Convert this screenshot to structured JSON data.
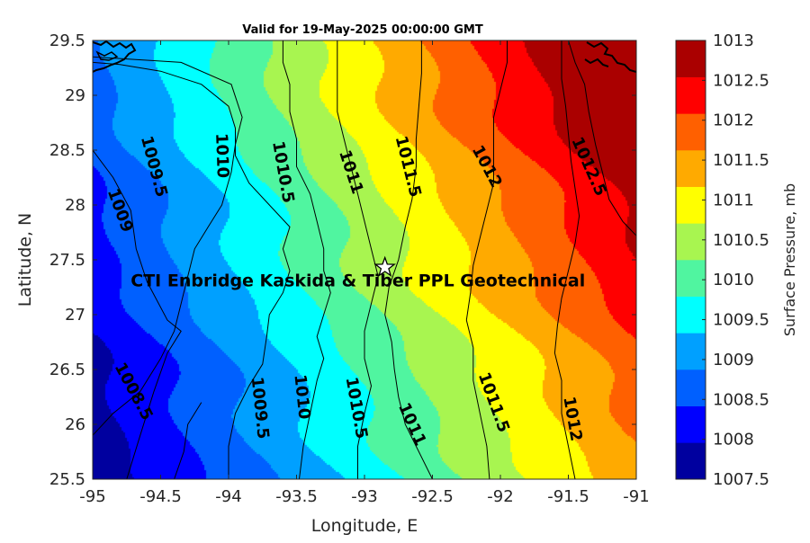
{
  "chart_data": {
    "type": "contour",
    "title": "Valid for 19-May-2025 00:00:00 GMT",
    "xlabel": "Longitude, E",
    "ylabel": "Latitude, N",
    "xlim": [
      -95,
      -91
    ],
    "ylim": [
      25.5,
      29.5
    ],
    "x_ticks": [
      -95,
      -94.5,
      -94,
      -93.5,
      -93,
      -92.5,
      -92,
      -91.5,
      -91
    ],
    "y_ticks": [
      25.5,
      26,
      26.5,
      27,
      27.5,
      28,
      28.5,
      29,
      29.5
    ],
    "colorbar": {
      "label": "Surface Pressure, mb",
      "ticks": [
        1007.5,
        1008,
        1008.5,
        1009,
        1009.5,
        1010,
        1010.5,
        1011,
        1011.5,
        1012,
        1012.5,
        1013
      ],
      "colors": [
        "#00009f",
        "#0000ff",
        "#0060ff",
        "#00a0ff",
        "#00ffff",
        "#50f5a0",
        "#a8f550",
        "#ffff00",
        "#ffaa00",
        "#ff6000",
        "#ff0000",
        "#aa0000"
      ]
    },
    "contour_lines": [
      {
        "level": 1008.5,
        "points": [
          [
            -95,
            25.9
          ],
          [
            -94.85,
            26.1
          ],
          [
            -94.65,
            26.3
          ],
          [
            -94.5,
            26.6
          ],
          [
            -94.4,
            26.85
          ],
          [
            -94.35,
            27.1
          ],
          [
            -94.3,
            27.35
          ],
          [
            -94.25,
            27.6
          ],
          [
            -94.15,
            27.8
          ],
          [
            -94.05,
            28.0
          ],
          [
            -93.98,
            28.3
          ],
          [
            -93.95,
            28.55
          ],
          [
            -93.9,
            28.8
          ],
          [
            -93.98,
            29.1
          ],
          [
            -94.35,
            29.3
          ],
          [
            -95,
            29.35
          ]
        ]
      },
      {
        "level": 1008.5,
        "points": [
          [
            -94.75,
            25.5
          ],
          [
            -94.65,
            25.9
          ],
          [
            -94.55,
            26.3
          ],
          [
            -94.45,
            26.65
          ],
          [
            -94.35,
            26.85
          ],
          [
            -94.45,
            26.95
          ],
          [
            -94.6,
            27.3
          ],
          [
            -94.68,
            27.6
          ],
          [
            -94.72,
            27.95
          ],
          [
            -94.85,
            28.25
          ],
          [
            -95,
            28.5
          ]
        ]
      },
      {
        "level": 1009,
        "points": [
          [
            -94.4,
            25.5
          ],
          [
            -94.33,
            25.75
          ],
          [
            -94.3,
            26.0
          ],
          [
            -94.2,
            26.2
          ]
        ]
      },
      {
        "level": 1009.5,
        "points": [
          [
            -94,
            25.5
          ],
          [
            -94.0,
            25.8
          ],
          [
            -93.95,
            26.1
          ],
          [
            -93.85,
            26.35
          ],
          [
            -93.75,
            26.55
          ],
          [
            -93.72,
            26.8
          ],
          [
            -93.7,
            27.0
          ],
          [
            -93.6,
            27.2
          ],
          [
            -93.55,
            27.4
          ],
          [
            -93.6,
            27.6
          ],
          [
            -93.55,
            27.8
          ],
          [
            -93.7,
            28.0
          ],
          [
            -93.85,
            28.2
          ],
          [
            -93.95,
            28.45
          ],
          [
            -93.95,
            28.7
          ],
          [
            -94.0,
            28.9
          ],
          [
            -94.2,
            29.1
          ],
          [
            -94.5,
            29.22
          ],
          [
            -94.8,
            29.28
          ],
          [
            -95,
            29.3
          ]
        ]
      },
      {
        "level": 1010,
        "points": [
          [
            -93.48,
            25.5
          ],
          [
            -93.45,
            25.8
          ],
          [
            -93.4,
            26.1
          ],
          [
            -93.35,
            26.4
          ],
          [
            -93.3,
            26.6
          ],
          [
            -93.35,
            26.8
          ],
          [
            -93.3,
            27.0
          ],
          [
            -93.25,
            27.2
          ],
          [
            -93.3,
            27.4
          ],
          [
            -93.3,
            27.6
          ],
          [
            -93.35,
            27.85
          ],
          [
            -93.4,
            28.1
          ],
          [
            -93.5,
            28.35
          ],
          [
            -93.5,
            28.6
          ],
          [
            -93.55,
            28.85
          ],
          [
            -93.55,
            29.1
          ],
          [
            -93.6,
            29.3
          ],
          [
            -93.6,
            29.5
          ]
        ]
      },
      {
        "level": 1010.5,
        "points": [
          [
            -93.05,
            25.5
          ],
          [
            -93.05,
            25.8
          ],
          [
            -93.0,
            26.1
          ],
          [
            -92.95,
            26.35
          ],
          [
            -93.0,
            26.6
          ],
          [
            -93.0,
            26.85
          ],
          [
            -92.95,
            27.1
          ],
          [
            -92.9,
            27.35
          ],
          [
            -92.95,
            27.6
          ],
          [
            -93.0,
            27.85
          ],
          [
            -93.05,
            28.1
          ],
          [
            -93.1,
            28.35
          ],
          [
            -93.15,
            28.6
          ],
          [
            -93.2,
            28.85
          ],
          [
            -93.2,
            29.1
          ],
          [
            -93.2,
            29.5
          ]
        ]
      },
      {
        "level": 1011,
        "points": [
          [
            -92.5,
            25.5
          ],
          [
            -92.6,
            25.75
          ],
          [
            -92.7,
            26.0
          ],
          [
            -92.75,
            26.25
          ],
          [
            -92.78,
            26.5
          ],
          [
            -92.8,
            26.75
          ],
          [
            -92.85,
            27.0
          ],
          [
            -92.82,
            27.25
          ],
          [
            -92.75,
            27.5
          ],
          [
            -92.7,
            27.8
          ],
          [
            -92.65,
            28.05
          ],
          [
            -92.62,
            28.35
          ],
          [
            -92.62,
            28.6
          ],
          [
            -92.6,
            28.9
          ],
          [
            -92.58,
            29.2
          ],
          [
            -92.58,
            29.5
          ]
        ]
      },
      {
        "level": 1011.5,
        "points": [
          [
            -92.08,
            25.5
          ],
          [
            -92.1,
            25.8
          ],
          [
            -92.15,
            26.1
          ],
          [
            -92.2,
            26.4
          ],
          [
            -92.2,
            26.7
          ],
          [
            -92.25,
            26.95
          ],
          [
            -92.22,
            27.2
          ],
          [
            -92.2,
            27.45
          ],
          [
            -92.15,
            27.7
          ],
          [
            -92.1,
            27.95
          ],
          [
            -92.05,
            28.2
          ],
          [
            -92.05,
            28.5
          ],
          [
            -92.05,
            28.8
          ],
          [
            -92.0,
            29.05
          ],
          [
            -91.95,
            29.3
          ],
          [
            -91.95,
            29.5
          ]
        ]
      },
      {
        "level": 1012,
        "points": [
          [
            -91.45,
            25.5
          ],
          [
            -91.5,
            25.8
          ],
          [
            -91.55,
            26.1
          ],
          [
            -91.55,
            26.4
          ],
          [
            -91.6,
            26.65
          ],
          [
            -91.58,
            26.9
          ],
          [
            -91.55,
            27.15
          ],
          [
            -91.5,
            27.4
          ],
          [
            -91.45,
            27.65
          ],
          [
            -91.42,
            27.9
          ],
          [
            -91.45,
            28.15
          ],
          [
            -91.48,
            28.4
          ],
          [
            -91.5,
            28.65
          ],
          [
            -91.52,
            28.9
          ],
          [
            -91.55,
            29.15
          ],
          [
            -91.55,
            29.5
          ]
        ]
      },
      {
        "level": 1012.5,
        "points": [
          [
            -91,
            27.72
          ],
          [
            -91.1,
            27.85
          ],
          [
            -91.2,
            28.05
          ],
          [
            -91.25,
            28.3
          ],
          [
            -91.3,
            28.55
          ],
          [
            -91.35,
            28.85
          ],
          [
            -91.38,
            29.1
          ],
          [
            -91.45,
            29.3
          ],
          [
            -91.5,
            29.5
          ]
        ]
      }
    ],
    "contour_labels": [
      {
        "text": "1008.5",
        "lon": -94.7,
        "lat": 26.3,
        "angle": 62
      },
      {
        "text": "1009",
        "lon": -94.8,
        "lat": 27.95,
        "angle": 70
      },
      {
        "text": "1009.5",
        "lon": -94.55,
        "lat": 28.35,
        "angle": 75
      },
      {
        "text": "1010",
        "lon": -94.05,
        "lat": 28.45,
        "angle": 88
      },
      {
        "text": "1009.5",
        "lon": -93.77,
        "lat": 26.15,
        "angle": 84
      },
      {
        "text": "1010.5",
        "lon": -93.6,
        "lat": 28.3,
        "angle": 80
      },
      {
        "text": "1010",
        "lon": -93.46,
        "lat": 26.25,
        "angle": 84
      },
      {
        "text": "1011",
        "lon": -93.1,
        "lat": 28.3,
        "angle": 72
      },
      {
        "text": "1010.5",
        "lon": -93.06,
        "lat": 26.15,
        "angle": 80
      },
      {
        "text": "1011.5",
        "lon": -92.68,
        "lat": 28.35,
        "angle": 76
      },
      {
        "text": "1011",
        "lon": -92.65,
        "lat": 26.0,
        "angle": 66
      },
      {
        "text": "1012",
        "lon": -92.1,
        "lat": 28.35,
        "angle": 62
      },
      {
        "text": "1011.5",
        "lon": -92.05,
        "lat": 26.2,
        "angle": 70
      },
      {
        "text": "1012.5",
        "lon": -91.35,
        "lat": 28.35,
        "angle": 66
      },
      {
        "text": "1012",
        "lon": -91.47,
        "lat": 26.05,
        "angle": 80
      }
    ],
    "site": {
      "label": "CTI Enbridge  Kaskida & Tiber PPL Geotechnical",
      "lon": -92.85,
      "lat": 27.43
    }
  }
}
